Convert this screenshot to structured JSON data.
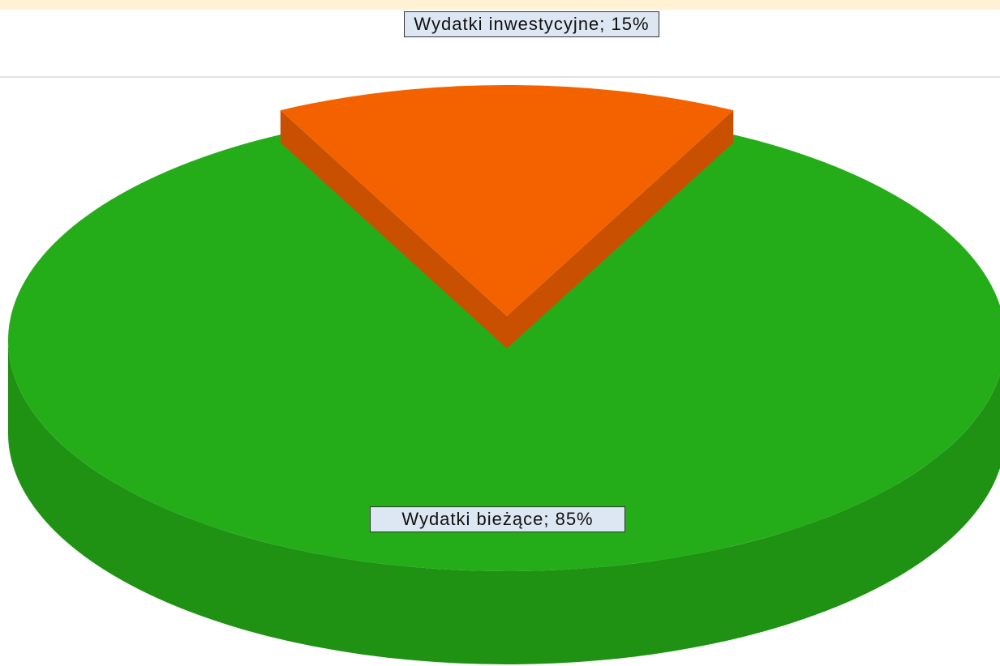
{
  "chart_data": {
    "type": "pie3d",
    "values": [
      85,
      15
    ],
    "value_labels": [
      "Wydatki bieżące; 85%",
      "Wydatki inwestycyjne; 15%"
    ],
    "colors": [
      "#25ad19",
      "#f46200"
    ],
    "side_colors": [
      "#1f9214",
      "#c95000"
    ],
    "exploded": [
      false,
      true
    ]
  }
}
